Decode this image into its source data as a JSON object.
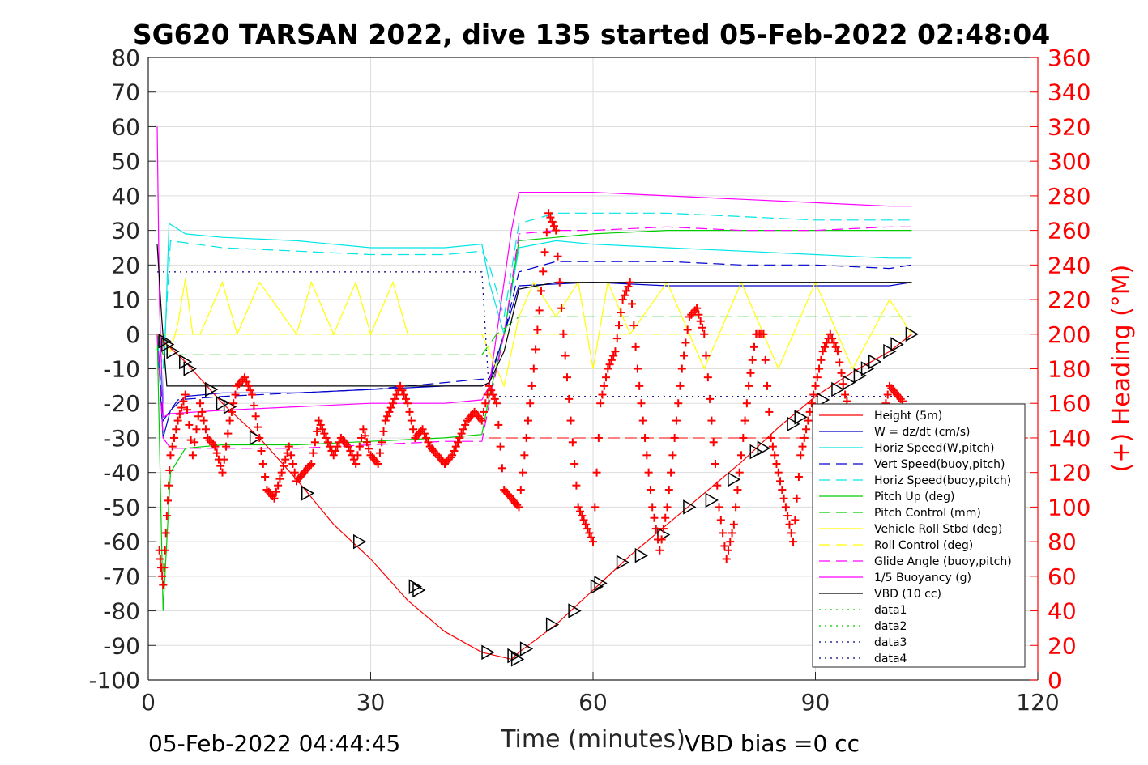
{
  "chart_data": {
    "type": "line",
    "title": "SG620 TARSAN 2022, dive 135 started 05-Feb-2022 02:48:04",
    "xlabel": "Time (minutes)",
    "ylabel_right": "(+) Heading (°M)",
    "xlim": [
      0,
      120
    ],
    "ylim": [
      -100,
      80
    ],
    "ylim_right": [
      0,
      360
    ],
    "x_ticks": [
      "0",
      "30",
      "60",
      "90",
      "120"
    ],
    "y_ticks": [
      "80",
      "70",
      "60",
      "50",
      "40",
      "30",
      "20",
      "10",
      "0",
      "-10",
      "-20",
      "-30",
      "-40",
      "-50",
      "-60",
      "-70",
      "-80",
      "-90",
      "-100"
    ],
    "y_right_ticks": [
      "360",
      "340",
      "320",
      "300",
      "280",
      "260",
      "240",
      "220",
      "200",
      "180",
      "160",
      "140",
      "120",
      "100",
      "80",
      "60",
      "40",
      "20",
      "0"
    ],
    "grid": true,
    "legend_position": "bottom-right",
    "footer_left": "05-Feb-2022 04:44:45",
    "footer_right": "VBD bias =0 cc",
    "colors": {
      "red": "#ff0000",
      "blue": "#0000cc",
      "cyan": "#00e5e5",
      "green": "#00cc00",
      "yellow": "#ffff00",
      "magenta": "#ff00ff",
      "black": "#000000",
      "dkblue": "#000080"
    },
    "series": [
      {
        "name": "Height (5m)",
        "color": "#ff0000",
        "style": "solid",
        "x": [
          0,
          50,
          55
        ],
        "y": [
          0,
          0,
          0
        ],
        "visible": false
      },
      {
        "name": "W = dz/dt (cm/s)",
        "color": "#0000cc",
        "style": "solid",
        "x": [
          1.2,
          2,
          3,
          5,
          10,
          20,
          30,
          40,
          45,
          46,
          48,
          50,
          60,
          70,
          80,
          90,
          100,
          103
        ],
        "y": [
          0,
          -30,
          -22,
          -18,
          -17,
          -17,
          -16,
          -15,
          -15,
          -14,
          0,
          14,
          15,
          14,
          14,
          14,
          14,
          15
        ]
      },
      {
        "name": "Horiz Speed(W,pitch)",
        "color": "#00e5e5",
        "style": "solid",
        "x": [
          1.2,
          2,
          2.8,
          5,
          10,
          20,
          30,
          40,
          45,
          46,
          48,
          50,
          55,
          60,
          70,
          80,
          90,
          100,
          103
        ],
        "y": [
          0,
          -20,
          32,
          29,
          28,
          27,
          25,
          25,
          26,
          15,
          0,
          25,
          27,
          26,
          25,
          24,
          23,
          22,
          22
        ]
      },
      {
        "name": "Vert Speed(buoy,pitch)",
        "color": "#0000cc",
        "style": "dash",
        "x": [
          1.2,
          2,
          4,
          10,
          20,
          30,
          40,
          45,
          46,
          48,
          50,
          55,
          60,
          70,
          80,
          90,
          100,
          103
        ],
        "y": [
          0,
          -25,
          -19,
          -18,
          -17,
          -16,
          -14,
          -13,
          -13,
          0,
          18,
          21,
          21,
          21,
          20,
          20,
          19,
          20
        ]
      },
      {
        "name": "Horiz Speed(buoy,pitch)",
        "color": "#00e5e5",
        "style": "dash",
        "x": [
          1.2,
          2,
          3,
          10,
          20,
          30,
          40,
          45,
          46,
          48,
          50,
          55,
          60,
          70,
          80,
          90,
          100,
          103
        ],
        "y": [
          0,
          -10,
          27,
          25,
          24,
          23,
          23,
          24,
          20,
          5,
          32,
          35,
          35,
          35,
          34,
          33,
          33,
          33
        ]
      },
      {
        "name": "Pitch Up (deg)",
        "color": "#00cc00",
        "style": "solid",
        "x": [
          1.2,
          2,
          3,
          5,
          10,
          20,
          30,
          40,
          45,
          46,
          48,
          50,
          55,
          60,
          70,
          80,
          90,
          100,
          103
        ],
        "y": [
          0,
          -80,
          -40,
          -33,
          -32,
          -32,
          -31,
          -30,
          -29,
          -18,
          0,
          27,
          28,
          29,
          30,
          30,
          30,
          30,
          30
        ]
      },
      {
        "name": "Pitch Control (mm)",
        "color": "#00cc00",
        "style": "dash",
        "x": [
          1.2,
          2,
          3,
          45,
          47,
          50,
          103
        ],
        "y": [
          0,
          -6,
          -6,
          -6,
          0,
          5,
          5
        ]
      },
      {
        "name": "Vehicle Roll Stbd (deg)",
        "color": "#ffff00",
        "style": "solid",
        "x": [
          1.2,
          3,
          4,
          5,
          6,
          7,
          10,
          12,
          15,
          20,
          22,
          25,
          28,
          30,
          33,
          35,
          38,
          42,
          45,
          48,
          50,
          52,
          55,
          58,
          60,
          62,
          65,
          70,
          75,
          80,
          85,
          90,
          95,
          100,
          103
        ],
        "y": [
          0,
          -5,
          3,
          16,
          0,
          0,
          15,
          0,
          15,
          0,
          15,
          0,
          15,
          0,
          15,
          0,
          0,
          0,
          0,
          -15,
          5,
          15,
          5,
          15,
          -10,
          15,
          0,
          15,
          -10,
          15,
          -10,
          15,
          -10,
          10,
          0
        ]
      },
      {
        "name": "Roll Control (deg)",
        "color": "#ffff00",
        "style": "dash",
        "x": [
          1.2,
          103
        ],
        "y": [
          0,
          0
        ]
      },
      {
        "name": "Glide Angle (buoy,pitch)",
        "color": "#ff00ff",
        "style": "dash",
        "x": [
          1.2,
          2,
          3,
          10,
          20,
          30,
          40,
          45,
          46,
          48,
          50,
          55,
          60,
          70,
          80,
          90,
          100,
          103
        ],
        "y": [
          0,
          -30,
          -33,
          -33,
          -33,
          -32,
          -31,
          -31,
          -20,
          0,
          29,
          30,
          30,
          31,
          30,
          30,
          31,
          31
        ]
      },
      {
        "name": "1/5 Buoyancy (g)",
        "color": "#ff00ff",
        "style": "solid",
        "x": [
          1.2,
          1.5,
          2,
          3,
          10,
          20,
          30,
          40,
          45,
          46,
          49,
          50,
          55,
          60,
          70,
          80,
          90,
          100,
          103
        ],
        "y": [
          60,
          10,
          -24,
          -23,
          -22,
          -21,
          -20,
          -20,
          -19,
          -15,
          30,
          41,
          41,
          41,
          40,
          39,
          38,
          37,
          37
        ]
      },
      {
        "name": "VBD (10 cc)",
        "color": "#000000",
        "style": "solid",
        "x": [
          1.2,
          1.8,
          2.5,
          5,
          10,
          20,
          30,
          40,
          45,
          46,
          48,
          50,
          55,
          60,
          70,
          80,
          90,
          100,
          103
        ],
        "y": [
          26,
          5,
          -15,
          -15,
          -15,
          -15,
          -15,
          -15,
          -15,
          -14,
          -5,
          13,
          15,
          15,
          15,
          15,
          15,
          15,
          15
        ]
      },
      {
        "name": "data1",
        "color": "#00cc00",
        "style": "dot",
        "x": [],
        "y": []
      },
      {
        "name": "data2",
        "color": "#00cc00",
        "style": "dot",
        "x": [],
        "y": []
      },
      {
        "name": "data3",
        "color": "#000080",
        "style": "dot",
        "x": [
          1.2,
          45,
          46,
          103
        ],
        "y": [
          18,
          18,
          -18,
          -18
        ]
      },
      {
        "name": "data4",
        "color": "#000080",
        "style": "dot",
        "x": [],
        "y": []
      }
    ],
    "depth_profile": {
      "color": "#ff0000",
      "x": [
        2,
        5,
        10,
        15,
        20,
        25,
        30,
        35,
        40,
        45,
        47,
        49,
        50,
        55,
        60,
        65,
        70,
        75,
        80,
        85,
        90,
        95,
        100,
        103
      ],
      "y": [
        -2,
        -8,
        -20,
        -30,
        -42,
        -55,
        -65,
        -77,
        -86,
        -92,
        -93,
        -94,
        -92,
        -84,
        -74,
        -64,
        -55,
        -46,
        -37,
        -27,
        -18,
        -11,
        -5,
        0
      ]
    },
    "depth_markers": {
      "x": [
        2.2,
        2.6,
        3.3,
        5,
        5.6,
        8.5,
        10,
        11,
        14.5,
        21.5,
        28.5,
        36,
        36.5,
        45.8,
        49.3,
        49.8,
        51,
        54.5,
        57.5,
        60.5,
        61,
        64,
        66.5,
        69.5,
        73,
        76,
        79,
        82,
        83,
        87,
        88,
        91,
        93,
        94.5,
        96,
        97,
        98,
        100,
        101,
        103
      ],
      "y": [
        -2,
        -3,
        -5,
        -8,
        -10,
        -16,
        -20,
        -21,
        -30,
        -46,
        -60,
        -73,
        -74,
        -92,
        -93,
        -94,
        -91,
        -84,
        -80,
        -73,
        -72,
        -66,
        -64,
        -58,
        -50,
        -48,
        -42,
        -34,
        -33,
        -26,
        -24,
        -19,
        -16,
        -14,
        -12,
        -10,
        -8,
        -5,
        -3,
        0
      ]
    },
    "heading": {
      "color": "#ff0000",
      "x": [
        1.5,
        2,
        2.5,
        3,
        4,
        5,
        6,
        7,
        8,
        9,
        10,
        11,
        12,
        13,
        14,
        15,
        16,
        17,
        18,
        19,
        20,
        21,
        22,
        23,
        24,
        25,
        26,
        27,
        28,
        29,
        30,
        31,
        32,
        33,
        34,
        35,
        36,
        37,
        38,
        39,
        40,
        41,
        42,
        43,
        44,
        45,
        46,
        47,
        48,
        49,
        50,
        51,
        52,
        53,
        54,
        55,
        56,
        57,
        58,
        59,
        60,
        61,
        62,
        63,
        64,
        65,
        66,
        67,
        68,
        69,
        70,
        71,
        72,
        73,
        74,
        75,
        76,
        77,
        78,
        79,
        80,
        81,
        82,
        83,
        84,
        85,
        86,
        87,
        88,
        89,
        90,
        91,
        92,
        93,
        94,
        95,
        96,
        97,
        98,
        99,
        100,
        101,
        102
      ],
      "y": [
        75,
        55,
        95,
        130,
        150,
        165,
        130,
        160,
        140,
        135,
        120,
        150,
        170,
        175,
        165,
        140,
        110,
        105,
        120,
        135,
        115,
        120,
        125,
        150,
        140,
        130,
        140,
        135,
        125,
        145,
        130,
        125,
        150,
        160,
        170,
        160,
        140,
        145,
        135,
        130,
        125,
        130,
        140,
        150,
        155,
        150,
        170,
        160,
        110,
        105,
        100,
        140,
        180,
        225,
        270,
        260,
        200,
        150,
        100,
        90,
        80,
        160,
        180,
        190,
        220,
        230,
        180,
        140,
        100,
        75,
        100,
        140,
        180,
        210,
        215,
        200,
        150,
        100,
        70,
        90,
        130,
        170,
        200,
        200,
        140,
        120,
        100,
        80,
        130,
        150,
        170,
        190,
        200,
        190,
        165,
        150,
        140,
        130,
        120,
        150,
        170,
        165,
        160
      ]
    }
  }
}
